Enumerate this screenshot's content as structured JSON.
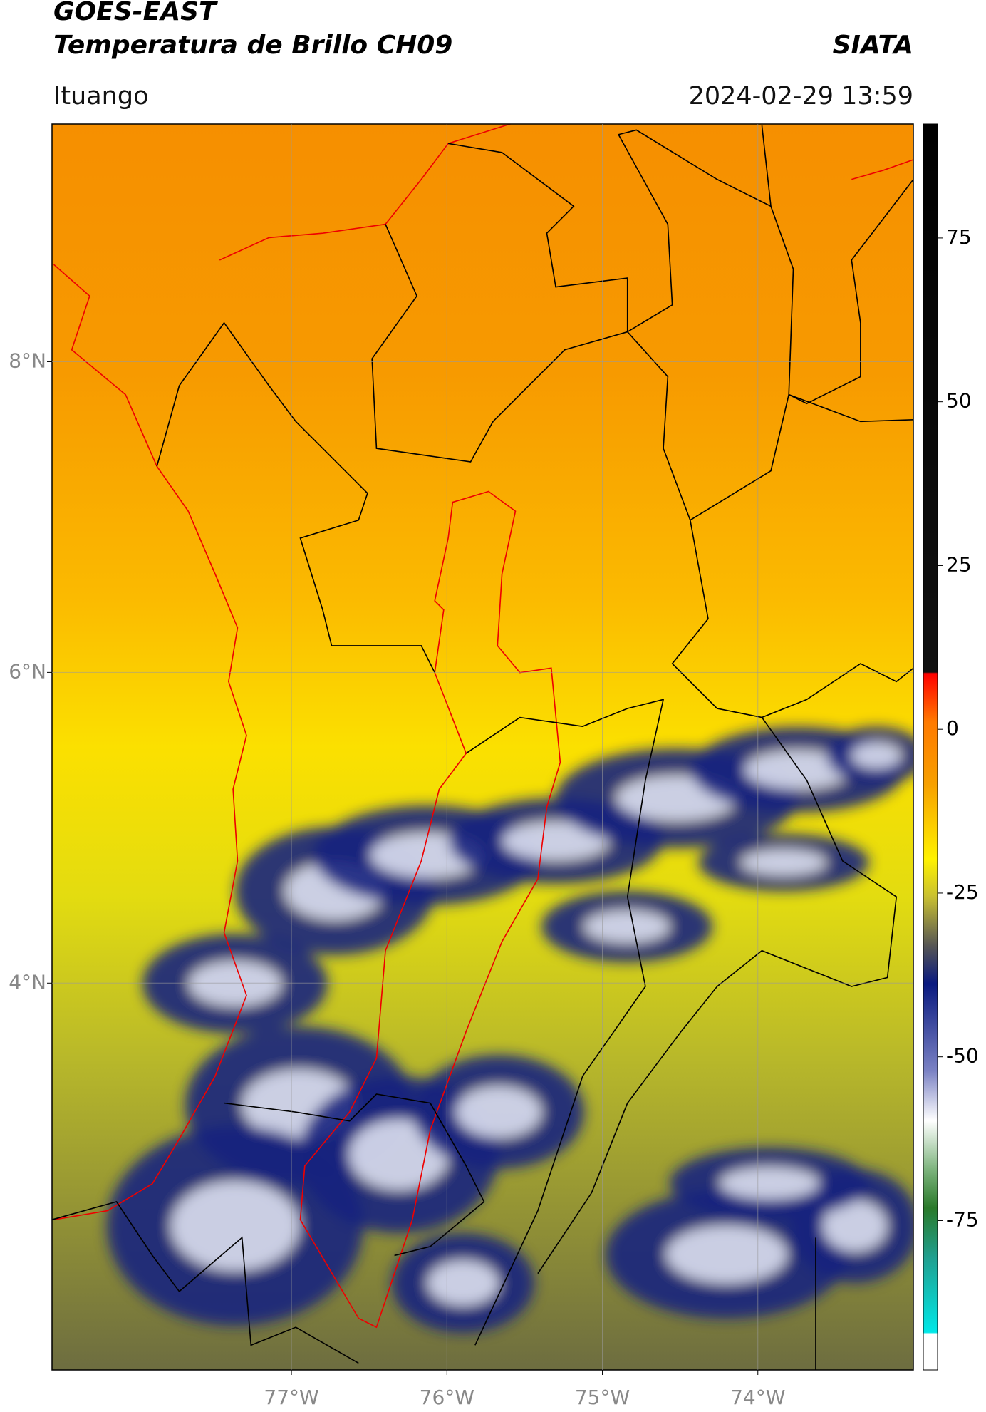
{
  "header": {
    "title": "GOES-EAST",
    "subtitle": "Temperatura de Brillo CH09",
    "source": "SIATA",
    "location": "Ituango",
    "timestamp": "2024-02-29 13:59"
  },
  "map": {
    "lonlim": [
      -78.54,
      -73.0
    ],
    "latlim": [
      1.51,
      9.53
    ],
    "lat_ticks": [
      {
        "value": 8,
        "label": "8°N"
      },
      {
        "value": 6,
        "label": "6°N"
      },
      {
        "value": 4,
        "label": "4°N"
      }
    ],
    "lon_ticks": [
      {
        "value": -77,
        "label": "77°W"
      },
      {
        "value": -76,
        "label": "76°W"
      },
      {
        "value": -75,
        "label": "75°W"
      },
      {
        "value": -74,
        "label": "74°W"
      }
    ],
    "grid": true
  },
  "colorbar": {
    "lim": [
      -97.8,
      92.4
    ],
    "ticks": [
      75,
      50,
      25,
      0,
      -25,
      -50,
      -75
    ]
  }
}
